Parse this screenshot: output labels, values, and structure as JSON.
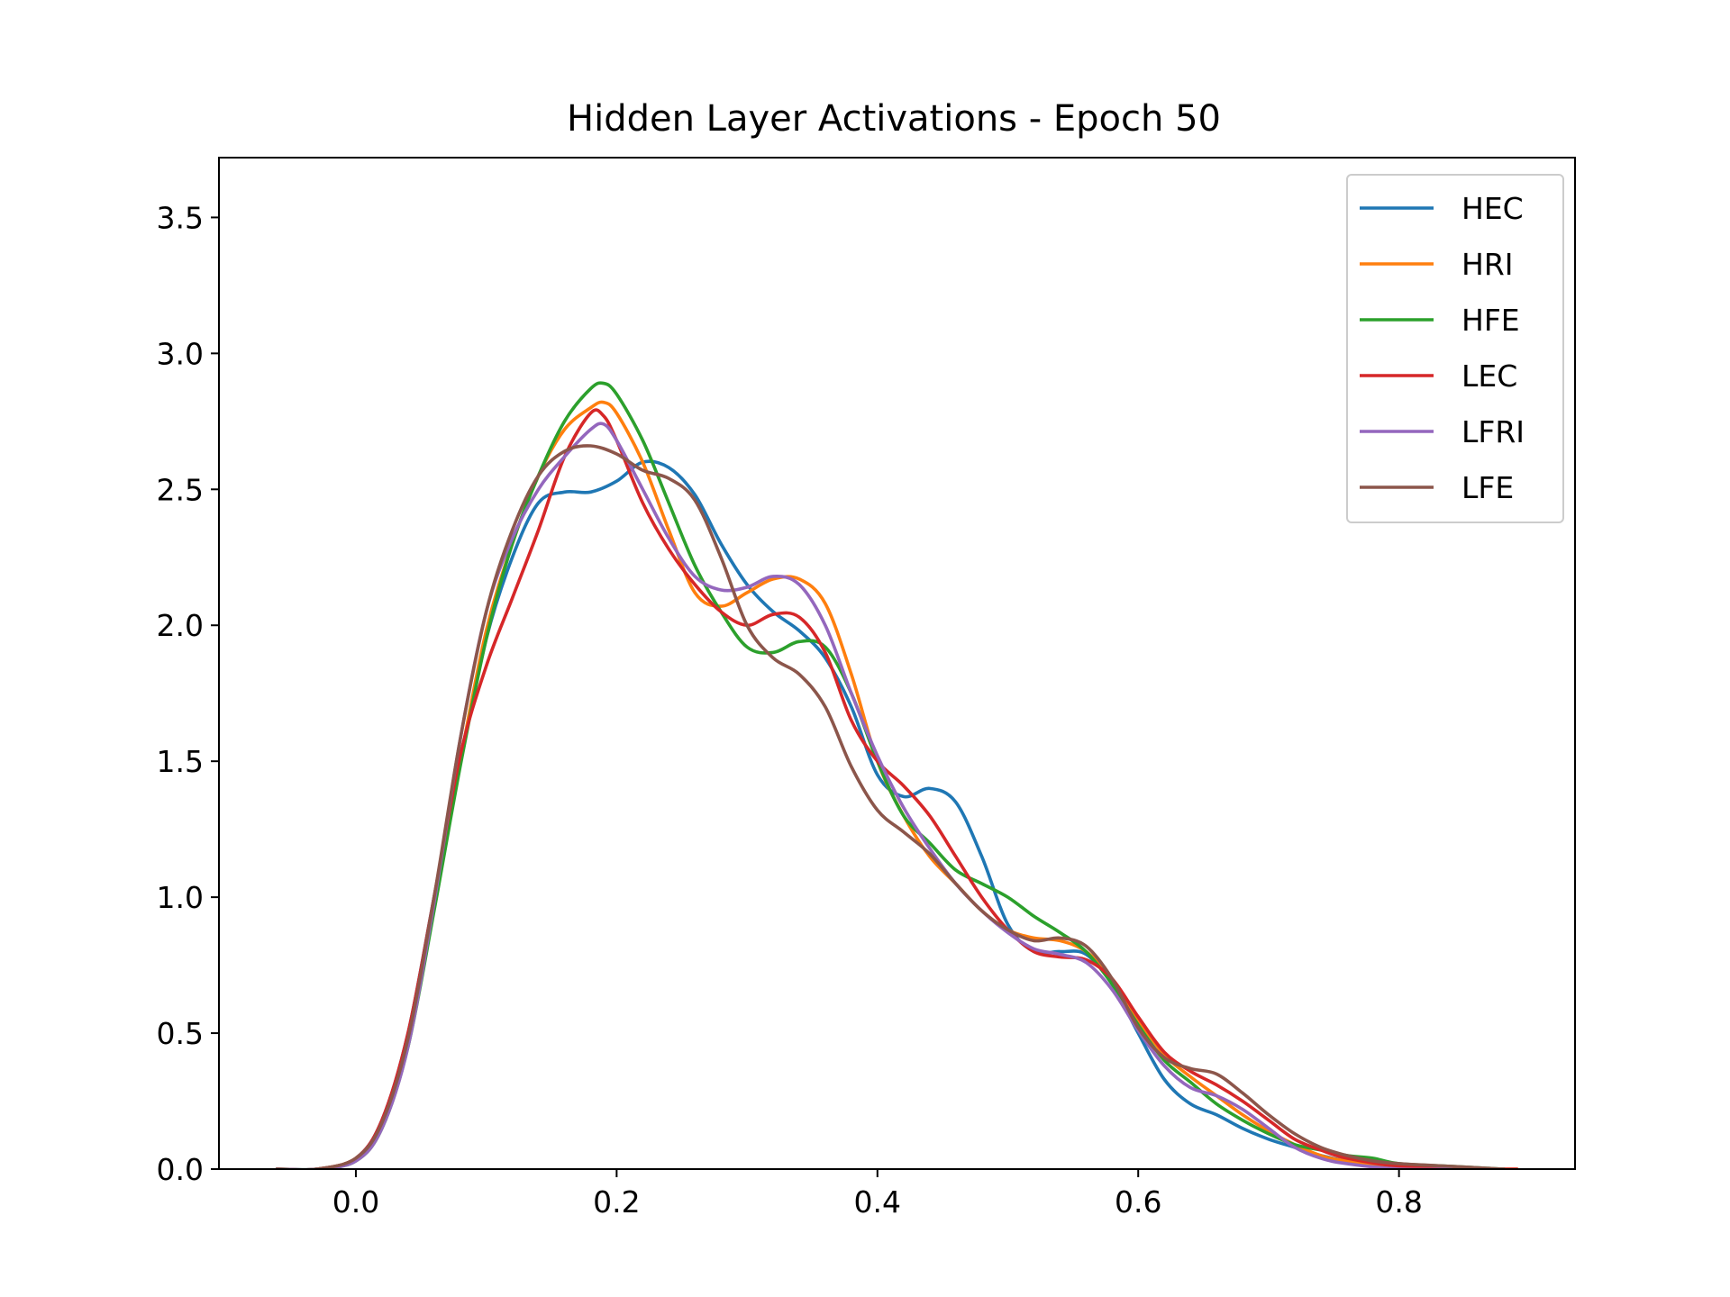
{
  "chart_data": {
    "type": "line",
    "title": "Hidden Layer Activations - Epoch 50",
    "xlabel": "",
    "ylabel": "",
    "xlim": [
      -0.105,
      0.935
    ],
    "ylim": [
      0.0,
      3.72
    ],
    "xticks": [
      0.0,
      0.2,
      0.4,
      0.6,
      0.8
    ],
    "yticks": [
      0.0,
      0.5,
      1.0,
      1.5,
      2.0,
      2.5,
      3.0,
      3.5
    ],
    "xtick_labels": [
      "0.0",
      "0.2",
      "0.4",
      "0.6",
      "0.8"
    ],
    "ytick_labels": [
      "0.0",
      "0.5",
      "1.0",
      "1.5",
      "2.0",
      "2.5",
      "3.0",
      "3.5"
    ],
    "grid": false,
    "legend_position": "top-right",
    "series": [
      {
        "name": "HEC",
        "color": "#1f77b4",
        "points": [
          [
            -0.06,
            0.0
          ],
          [
            -0.03,
            0.0
          ],
          [
            0.0,
            0.04
          ],
          [
            0.02,
            0.18
          ],
          [
            0.04,
            0.5
          ],
          [
            0.06,
            1.0
          ],
          [
            0.08,
            1.5
          ],
          [
            0.1,
            1.95
          ],
          [
            0.12,
            2.25
          ],
          [
            0.14,
            2.45
          ],
          [
            0.16,
            2.49
          ],
          [
            0.18,
            2.49
          ],
          [
            0.2,
            2.53
          ],
          [
            0.22,
            2.6
          ],
          [
            0.24,
            2.58
          ],
          [
            0.26,
            2.48
          ],
          [
            0.28,
            2.3
          ],
          [
            0.3,
            2.15
          ],
          [
            0.32,
            2.05
          ],
          [
            0.34,
            1.98
          ],
          [
            0.36,
            1.88
          ],
          [
            0.38,
            1.7
          ],
          [
            0.4,
            1.45
          ],
          [
            0.42,
            1.37
          ],
          [
            0.44,
            1.4
          ],
          [
            0.46,
            1.35
          ],
          [
            0.48,
            1.15
          ],
          [
            0.5,
            0.9
          ],
          [
            0.52,
            0.8
          ],
          [
            0.54,
            0.8
          ],
          [
            0.56,
            0.79
          ],
          [
            0.58,
            0.68
          ],
          [
            0.6,
            0.5
          ],
          [
            0.62,
            0.33
          ],
          [
            0.64,
            0.24
          ],
          [
            0.66,
            0.2
          ],
          [
            0.68,
            0.15
          ],
          [
            0.7,
            0.11
          ],
          [
            0.72,
            0.08
          ],
          [
            0.74,
            0.05
          ],
          [
            0.76,
            0.03
          ],
          [
            0.78,
            0.02
          ],
          [
            0.8,
            0.01
          ],
          [
            0.84,
            0.0
          ],
          [
            0.88,
            0.0
          ]
        ]
      },
      {
        "name": "HRI",
        "color": "#ff7f0e",
        "points": [
          [
            -0.06,
            0.0
          ],
          [
            -0.03,
            0.0
          ],
          [
            0.0,
            0.04
          ],
          [
            0.02,
            0.17
          ],
          [
            0.04,
            0.47
          ],
          [
            0.06,
            0.98
          ],
          [
            0.08,
            1.5
          ],
          [
            0.1,
            1.98
          ],
          [
            0.12,
            2.3
          ],
          [
            0.14,
            2.55
          ],
          [
            0.16,
            2.72
          ],
          [
            0.18,
            2.8
          ],
          [
            0.19,
            2.82
          ],
          [
            0.2,
            2.78
          ],
          [
            0.22,
            2.6
          ],
          [
            0.24,
            2.35
          ],
          [
            0.26,
            2.12
          ],
          [
            0.28,
            2.07
          ],
          [
            0.3,
            2.12
          ],
          [
            0.32,
            2.17
          ],
          [
            0.34,
            2.17
          ],
          [
            0.36,
            2.08
          ],
          [
            0.38,
            1.82
          ],
          [
            0.4,
            1.5
          ],
          [
            0.42,
            1.3
          ],
          [
            0.44,
            1.15
          ],
          [
            0.46,
            1.05
          ],
          [
            0.48,
            0.95
          ],
          [
            0.5,
            0.88
          ],
          [
            0.52,
            0.85
          ],
          [
            0.54,
            0.84
          ],
          [
            0.56,
            0.8
          ],
          [
            0.58,
            0.7
          ],
          [
            0.6,
            0.55
          ],
          [
            0.62,
            0.42
          ],
          [
            0.64,
            0.34
          ],
          [
            0.66,
            0.27
          ],
          [
            0.68,
            0.2
          ],
          [
            0.7,
            0.14
          ],
          [
            0.72,
            0.09
          ],
          [
            0.74,
            0.05
          ],
          [
            0.76,
            0.03
          ],
          [
            0.8,
            0.01
          ],
          [
            0.84,
            0.0
          ],
          [
            0.89,
            0.0
          ]
        ]
      },
      {
        "name": "HFE",
        "color": "#2ca02c",
        "points": [
          [
            -0.06,
            0.0
          ],
          [
            -0.03,
            0.0
          ],
          [
            0.0,
            0.03
          ],
          [
            0.02,
            0.15
          ],
          [
            0.04,
            0.45
          ],
          [
            0.06,
            0.95
          ],
          [
            0.08,
            1.48
          ],
          [
            0.1,
            1.95
          ],
          [
            0.12,
            2.3
          ],
          [
            0.14,
            2.55
          ],
          [
            0.16,
            2.75
          ],
          [
            0.18,
            2.87
          ],
          [
            0.19,
            2.89
          ],
          [
            0.2,
            2.85
          ],
          [
            0.22,
            2.68
          ],
          [
            0.24,
            2.45
          ],
          [
            0.26,
            2.22
          ],
          [
            0.28,
            2.05
          ],
          [
            0.3,
            1.92
          ],
          [
            0.32,
            1.9
          ],
          [
            0.34,
            1.94
          ],
          [
            0.36,
            1.92
          ],
          [
            0.38,
            1.75
          ],
          [
            0.4,
            1.5
          ],
          [
            0.42,
            1.3
          ],
          [
            0.44,
            1.2
          ],
          [
            0.46,
            1.1
          ],
          [
            0.48,
            1.05
          ],
          [
            0.5,
            1.0
          ],
          [
            0.52,
            0.93
          ],
          [
            0.54,
            0.87
          ],
          [
            0.56,
            0.8
          ],
          [
            0.58,
            0.68
          ],
          [
            0.6,
            0.53
          ],
          [
            0.62,
            0.4
          ],
          [
            0.64,
            0.32
          ],
          [
            0.66,
            0.24
          ],
          [
            0.68,
            0.18
          ],
          [
            0.7,
            0.13
          ],
          [
            0.72,
            0.09
          ],
          [
            0.74,
            0.07
          ],
          [
            0.76,
            0.05
          ],
          [
            0.78,
            0.04
          ],
          [
            0.8,
            0.02
          ],
          [
            0.84,
            0.01
          ],
          [
            0.88,
            0.0
          ]
        ]
      },
      {
        "name": "LEC",
        "color": "#d62728",
        "points": [
          [
            -0.06,
            0.0
          ],
          [
            -0.03,
            0.0
          ],
          [
            0.0,
            0.04
          ],
          [
            0.02,
            0.18
          ],
          [
            0.04,
            0.5
          ],
          [
            0.06,
            1.0
          ],
          [
            0.08,
            1.52
          ],
          [
            0.1,
            1.85
          ],
          [
            0.12,
            2.1
          ],
          [
            0.14,
            2.35
          ],
          [
            0.16,
            2.62
          ],
          [
            0.18,
            2.78
          ],
          [
            0.19,
            2.77
          ],
          [
            0.2,
            2.68
          ],
          [
            0.22,
            2.45
          ],
          [
            0.24,
            2.28
          ],
          [
            0.26,
            2.15
          ],
          [
            0.28,
            2.05
          ],
          [
            0.3,
            2.0
          ],
          [
            0.32,
            2.04
          ],
          [
            0.34,
            2.03
          ],
          [
            0.36,
            1.9
          ],
          [
            0.38,
            1.65
          ],
          [
            0.4,
            1.5
          ],
          [
            0.42,
            1.41
          ],
          [
            0.44,
            1.3
          ],
          [
            0.46,
            1.15
          ],
          [
            0.48,
            1.0
          ],
          [
            0.5,
            0.88
          ],
          [
            0.52,
            0.8
          ],
          [
            0.54,
            0.78
          ],
          [
            0.56,
            0.77
          ],
          [
            0.58,
            0.7
          ],
          [
            0.6,
            0.56
          ],
          [
            0.62,
            0.43
          ],
          [
            0.64,
            0.36
          ],
          [
            0.66,
            0.31
          ],
          [
            0.68,
            0.25
          ],
          [
            0.7,
            0.18
          ],
          [
            0.72,
            0.11
          ],
          [
            0.74,
            0.07
          ],
          [
            0.76,
            0.04
          ],
          [
            0.8,
            0.01
          ],
          [
            0.84,
            0.0
          ],
          [
            0.89,
            0.0
          ]
        ]
      },
      {
        "name": "LFRI",
        "color": "#9467bd",
        "points": [
          [
            -0.06,
            0.0
          ],
          [
            -0.03,
            0.0
          ],
          [
            0.0,
            0.03
          ],
          [
            0.02,
            0.15
          ],
          [
            0.04,
            0.45
          ],
          [
            0.06,
            0.98
          ],
          [
            0.08,
            1.58
          ],
          [
            0.1,
            2.05
          ],
          [
            0.12,
            2.32
          ],
          [
            0.14,
            2.5
          ],
          [
            0.16,
            2.62
          ],
          [
            0.18,
            2.72
          ],
          [
            0.19,
            2.74
          ],
          [
            0.2,
            2.68
          ],
          [
            0.22,
            2.5
          ],
          [
            0.24,
            2.32
          ],
          [
            0.26,
            2.18
          ],
          [
            0.28,
            2.13
          ],
          [
            0.3,
            2.14
          ],
          [
            0.32,
            2.18
          ],
          [
            0.34,
            2.15
          ],
          [
            0.36,
            2.0
          ],
          [
            0.38,
            1.75
          ],
          [
            0.4,
            1.52
          ],
          [
            0.42,
            1.33
          ],
          [
            0.44,
            1.18
          ],
          [
            0.46,
            1.05
          ],
          [
            0.48,
            0.95
          ],
          [
            0.5,
            0.87
          ],
          [
            0.52,
            0.81
          ],
          [
            0.54,
            0.79
          ],
          [
            0.56,
            0.76
          ],
          [
            0.58,
            0.66
          ],
          [
            0.6,
            0.51
          ],
          [
            0.62,
            0.38
          ],
          [
            0.64,
            0.3
          ],
          [
            0.66,
            0.27
          ],
          [
            0.68,
            0.22
          ],
          [
            0.7,
            0.15
          ],
          [
            0.72,
            0.08
          ],
          [
            0.74,
            0.04
          ],
          [
            0.76,
            0.02
          ],
          [
            0.8,
            0.0
          ],
          [
            0.84,
            0.0
          ]
        ]
      },
      {
        "name": "LFE",
        "color": "#8c564b",
        "points": [
          [
            -0.06,
            0.0
          ],
          [
            -0.03,
            0.0
          ],
          [
            0.0,
            0.04
          ],
          [
            0.02,
            0.17
          ],
          [
            0.04,
            0.48
          ],
          [
            0.06,
            1.0
          ],
          [
            0.08,
            1.58
          ],
          [
            0.1,
            2.05
          ],
          [
            0.12,
            2.35
          ],
          [
            0.14,
            2.55
          ],
          [
            0.16,
            2.64
          ],
          [
            0.18,
            2.66
          ],
          [
            0.2,
            2.63
          ],
          [
            0.22,
            2.57
          ],
          [
            0.24,
            2.54
          ],
          [
            0.26,
            2.46
          ],
          [
            0.28,
            2.25
          ],
          [
            0.3,
            2.0
          ],
          [
            0.32,
            1.88
          ],
          [
            0.34,
            1.82
          ],
          [
            0.36,
            1.7
          ],
          [
            0.38,
            1.48
          ],
          [
            0.4,
            1.32
          ],
          [
            0.42,
            1.24
          ],
          [
            0.44,
            1.16
          ],
          [
            0.46,
            1.05
          ],
          [
            0.48,
            0.95
          ],
          [
            0.5,
            0.88
          ],
          [
            0.52,
            0.84
          ],
          [
            0.54,
            0.85
          ],
          [
            0.56,
            0.82
          ],
          [
            0.58,
            0.7
          ],
          [
            0.6,
            0.52
          ],
          [
            0.62,
            0.41
          ],
          [
            0.64,
            0.37
          ],
          [
            0.66,
            0.35
          ],
          [
            0.68,
            0.28
          ],
          [
            0.7,
            0.2
          ],
          [
            0.72,
            0.13
          ],
          [
            0.74,
            0.08
          ],
          [
            0.76,
            0.05
          ],
          [
            0.78,
            0.03
          ],
          [
            0.8,
            0.02
          ],
          [
            0.84,
            0.01
          ],
          [
            0.88,
            0.0
          ]
        ]
      }
    ]
  }
}
